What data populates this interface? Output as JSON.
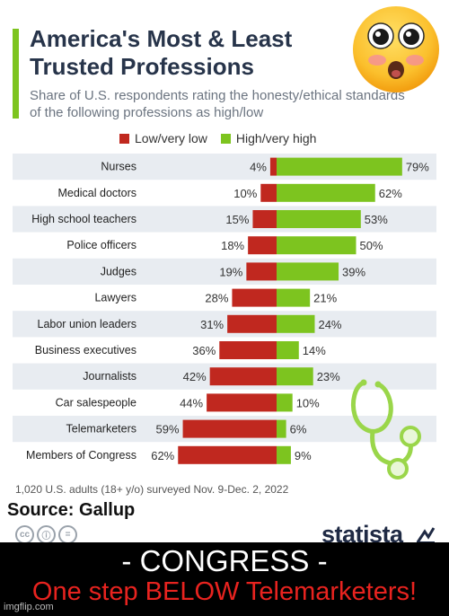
{
  "header": {
    "title": "America's Most & Least Trusted Professions",
    "subtitle": "Share of U.S. respondents rating the honesty/ethical standards of the following professions as high/low"
  },
  "colors": {
    "low": "#c0281f",
    "high": "#7dc41f",
    "accent": "#7dc41f",
    "row_band": "#e8ecf1"
  },
  "legend": {
    "low_label": "Low/very low",
    "high_label": "High/very high"
  },
  "chart_data": {
    "type": "bar",
    "categories": [
      "Nurses",
      "Medical doctors",
      "High school teachers",
      "Police officers",
      "Judges",
      "Lawyers",
      "Labor union leaders",
      "Business executives",
      "Journalists",
      "Car salespeople",
      "Telemarketers",
      "Members of Congress"
    ],
    "series": [
      {
        "name": "Low/very low",
        "values": [
          4,
          10,
          15,
          18,
          19,
          28,
          31,
          36,
          42,
          44,
          59,
          62
        ]
      },
      {
        "name": "High/very high",
        "values": [
          79,
          62,
          53,
          50,
          39,
          21,
          24,
          14,
          23,
          10,
          6,
          9
        ]
      }
    ],
    "unit": "%",
    "orientation": "diverging-horizontal"
  },
  "footnote": "1,020 U.S. adults (18+ y/o) surveyed Nov. 9-Dec. 2, 2022",
  "source": "Source: Gallup",
  "brand": "statista",
  "banner": {
    "line1": "- CONGRESS -",
    "line2": "One step BELOW Telemarketers!"
  },
  "watermark": "imgflip.com",
  "icons": [
    "astonished-emoji-icon",
    "stethoscope-icon",
    "creative-commons-icon",
    "attribution-icon",
    "no-derivatives-icon",
    "statista-logo-icon"
  ]
}
